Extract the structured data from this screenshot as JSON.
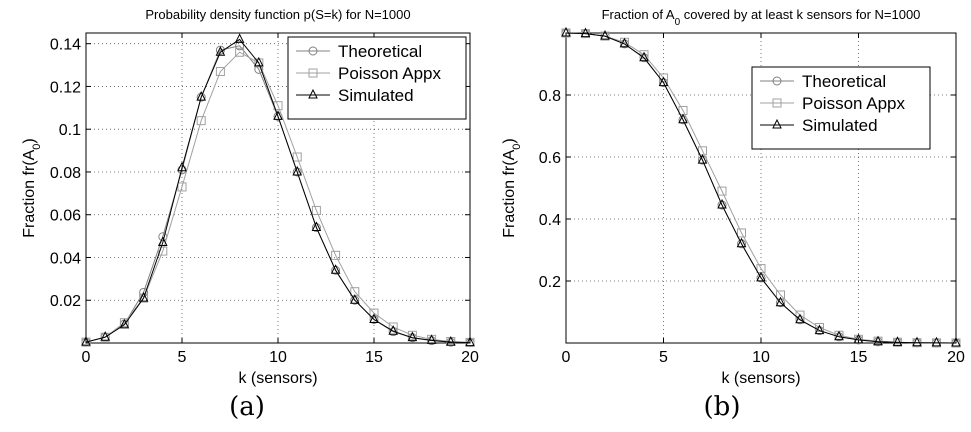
{
  "chart_data": [
    {
      "type": "line",
      "title": "Probability density function p(S=k) for N=1000",
      "xlabel": "k (sensors)",
      "ylabel": "Fraction fr(A",
      "ylabel_sub": "0",
      "ylabel_close": ")",
      "caption": "(a)",
      "xlim": [
        0,
        20
      ],
      "ylim": [
        0,
        0.145
      ],
      "xticks": [
        0,
        5,
        10,
        15,
        20
      ],
      "xtick_labels": [
        "0",
        "5",
        "10",
        "15",
        "20"
      ],
      "yticks": [
        0.02,
        0.04,
        0.06,
        0.08,
        0.1,
        0.12,
        0.14
      ],
      "ytick_labels": [
        "0.02",
        "0.04",
        "0.06",
        "0.08",
        "0.1",
        "0.12",
        "0.14"
      ],
      "grid": true,
      "legend_position": "top-right",
      "x": [
        0,
        1,
        2,
        3,
        4,
        5,
        6,
        7,
        8,
        9,
        10,
        11,
        12,
        13,
        14,
        15,
        16,
        17,
        18,
        19,
        20
      ],
      "series": [
        {
          "name": "Theoretical",
          "marker": "circle",
          "color": "#808080",
          "values": [
            0.0004,
            0.0028,
            0.0089,
            0.0237,
            0.0497,
            0.081,
            0.115,
            0.137,
            0.139,
            0.128,
            0.106,
            0.08,
            0.054,
            0.034,
            0.02,
            0.011,
            0.0053,
            0.0025,
            0.0011,
            0.0004,
            0.0002
          ]
        },
        {
          "name": "Poisson Appx",
          "marker": "square",
          "color": "#a0a0a0",
          "values": [
            0.0004,
            0.0027,
            0.0095,
            0.021,
            0.043,
            0.073,
            0.104,
            0.127,
            0.136,
            0.131,
            0.111,
            0.087,
            0.062,
            0.041,
            0.024,
            0.014,
            0.0075,
            0.0036,
            0.0017,
            0.0007,
            0.0003
          ]
        },
        {
          "name": "Simulated",
          "marker": "triangle",
          "color": "#000000",
          "values": [
            0.0004,
            0.0027,
            0.0085,
            0.021,
            0.047,
            0.082,
            0.115,
            0.136,
            0.142,
            0.131,
            0.106,
            0.08,
            0.054,
            0.034,
            0.02,
            0.011,
            0.0055,
            0.0025,
            0.0012,
            0.0004,
            0.0002
          ]
        }
      ]
    },
    {
      "type": "line",
      "title": "Fraction of A",
      "title_sub": "0",
      "title_rest": " covered by at least k sensors for N=1000",
      "xlabel": "k (sensors)",
      "ylabel": "Fraction fr(A",
      "ylabel_sub": "0",
      "ylabel_close": ")",
      "caption": "(b)",
      "xlim": [
        0,
        20
      ],
      "ylim": [
        0,
        1.0
      ],
      "xticks": [
        0,
        5,
        10,
        15,
        20
      ],
      "xtick_labels": [
        "0",
        "5",
        "10",
        "15",
        "20"
      ],
      "yticks": [
        0.2,
        0.4,
        0.6,
        0.8
      ],
      "ytick_labels": [
        "0.2",
        "0.4",
        "0.6",
        "0.8"
      ],
      "grid": true,
      "legend_position": "top-right",
      "x": [
        0,
        1,
        2,
        3,
        4,
        5,
        6,
        7,
        8,
        9,
        10,
        11,
        12,
        13,
        14,
        15,
        16,
        17,
        18,
        19,
        20
      ],
      "series": [
        {
          "name": "Theoretical",
          "marker": "circle",
          "color": "#808080",
          "values": [
            1.0,
            0.998,
            0.99,
            0.965,
            0.92,
            0.84,
            0.72,
            0.59,
            0.445,
            0.32,
            0.21,
            0.13,
            0.075,
            0.04,
            0.02,
            0.01,
            0.004,
            0.002,
            0.001,
            0.0003,
            0.0001
          ]
        },
        {
          "name": "Poisson Appx",
          "marker": "square",
          "color": "#a0a0a0",
          "values": [
            1.0,
            0.998,
            0.99,
            0.97,
            0.93,
            0.855,
            0.75,
            0.62,
            0.49,
            0.355,
            0.24,
            0.155,
            0.09,
            0.05,
            0.025,
            0.012,
            0.006,
            0.0025,
            0.001,
            0.0004,
            0.0001
          ]
        },
        {
          "name": "Simulated",
          "marker": "triangle",
          "color": "#000000",
          "values": [
            1.0,
            0.998,
            0.99,
            0.965,
            0.92,
            0.84,
            0.72,
            0.59,
            0.445,
            0.32,
            0.21,
            0.13,
            0.075,
            0.04,
            0.02,
            0.01,
            0.004,
            0.002,
            0.001,
            0.0003,
            0.0001
          ]
        }
      ]
    }
  ]
}
